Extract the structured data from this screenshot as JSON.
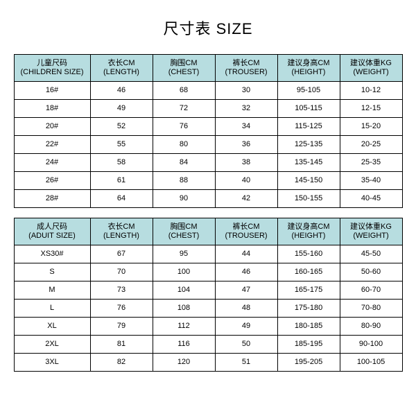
{
  "title": "尺寸表 SIZE",
  "header_bg": "#b7dde0",
  "border_color": "#000000",
  "children_table": {
    "columns": [
      {
        "line1": "儿童尺码",
        "line2": "(CHILDREN SIZE)"
      },
      {
        "line1": "衣长CM",
        "line2": "(LENGTH)"
      },
      {
        "line1": "胸围CM",
        "line2": "(CHEST)"
      },
      {
        "line1": "裤长CM",
        "line2": "(TROUSER)"
      },
      {
        "line1": "建议身高CM",
        "line2": "(HEIGHT)"
      },
      {
        "line1": "建议体重KG",
        "line2": "(WEIGHT)"
      }
    ],
    "rows": [
      [
        "16#",
        "46",
        "68",
        "30",
        "95-105",
        "10-12"
      ],
      [
        "18#",
        "49",
        "72",
        "32",
        "105-115",
        "12-15"
      ],
      [
        "20#",
        "52",
        "76",
        "34",
        "115-125",
        "15-20"
      ],
      [
        "22#",
        "55",
        "80",
        "36",
        "125-135",
        "20-25"
      ],
      [
        "24#",
        "58",
        "84",
        "38",
        "135-145",
        "25-35"
      ],
      [
        "26#",
        "61",
        "88",
        "40",
        "145-150",
        "35-40"
      ],
      [
        "28#",
        "64",
        "90",
        "42",
        "150-155",
        "40-45"
      ]
    ]
  },
  "adult_table": {
    "columns": [
      {
        "line1": "成人尺码",
        "line2": "(ADUIT SIZE)"
      },
      {
        "line1": "衣长CM",
        "line2": "(LENGTH)"
      },
      {
        "line1": "胸围CM",
        "line2": "(CHEST)"
      },
      {
        "line1": "裤长CM",
        "line2": "(TROUSER)"
      },
      {
        "line1": "建议身高CM",
        "line2": "(HEIGHT)"
      },
      {
        "line1": "建议体重KG",
        "line2": "(WEIGHT)"
      }
    ],
    "rows": [
      [
        "XS30#",
        "67",
        "95",
        "44",
        "155-160",
        "45-50"
      ],
      [
        "S",
        "70",
        "100",
        "46",
        "160-165",
        "50-60"
      ],
      [
        "M",
        "73",
        "104",
        "47",
        "165-175",
        "60-70"
      ],
      [
        "L",
        "76",
        "108",
        "48",
        "175-180",
        "70-80"
      ],
      [
        "XL",
        "79",
        "112",
        "49",
        "180-185",
        "80-90"
      ],
      [
        "2XL",
        "81",
        "116",
        "50",
        "185-195",
        "90-100"
      ],
      [
        "3XL",
        "82",
        "120",
        "51",
        "195-205",
        "100-105"
      ]
    ]
  }
}
